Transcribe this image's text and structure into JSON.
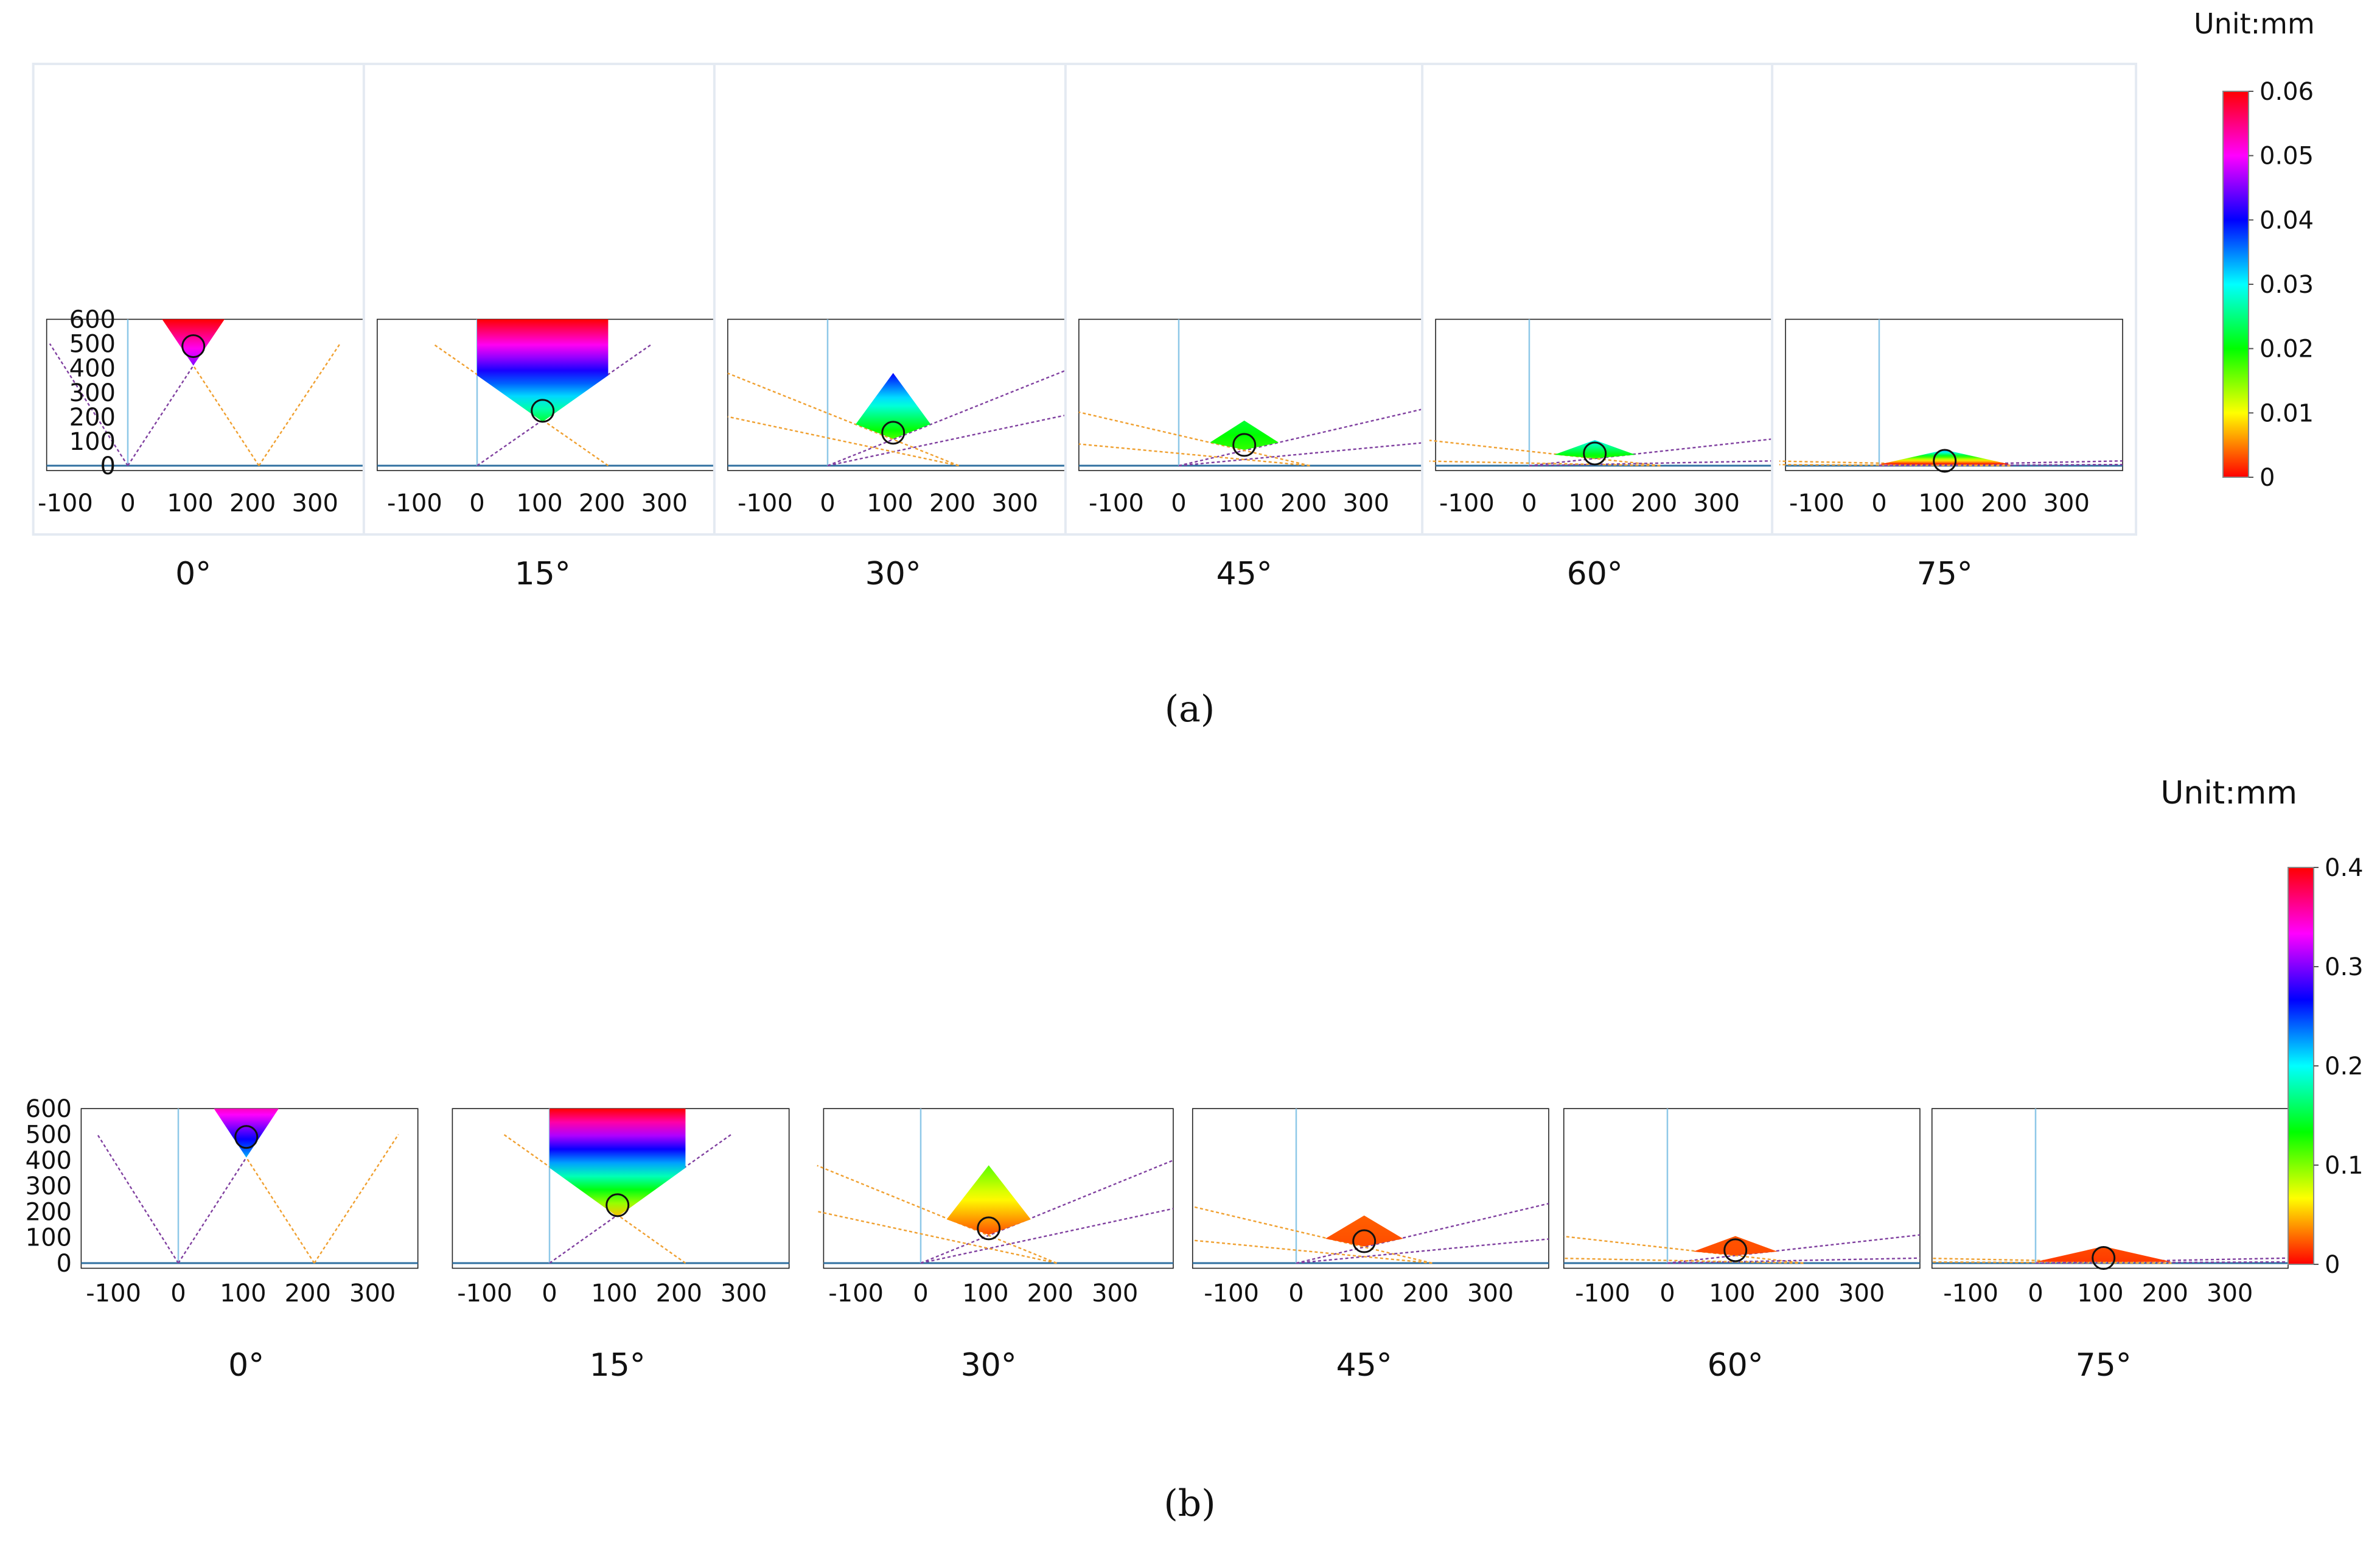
{
  "figure": {
    "unit_label": "Unit:mm",
    "panel_captions": {
      "a": "(a)",
      "b": "(b)"
    }
  },
  "chart_data": [
    {
      "type": "heatmap",
      "panel": "a",
      "unit": "Unit:mm",
      "subplot_titles": [
        "0°",
        "15°",
        "30°",
        "45°",
        "60°",
        "75°"
      ],
      "tilt_angles_deg": [
        0,
        15,
        30,
        45,
        60,
        75
      ],
      "x_ticks": [
        "-100",
        "0",
        "100",
        "200",
        "300"
      ],
      "x_tick_values": [
        -100,
        0,
        100,
        200,
        300
      ],
      "y_ticks": [
        "0",
        "100",
        "200",
        "300",
        "400",
        "500",
        "600"
      ],
      "y_tick_values": [
        0,
        100,
        200,
        300,
        400,
        500,
        600
      ],
      "xlim": [
        -130,
        380
      ],
      "ylim": [
        -20,
        600
      ],
      "colorbar": {
        "ticks": [
          "0",
          "0.01",
          "0.02",
          "0.03",
          "0.04",
          "0.05",
          "0.06"
        ],
        "tick_values": [
          0,
          0.01,
          0.02,
          0.03,
          0.04,
          0.05,
          0.06
        ],
        "range": [
          0,
          0.06
        ],
        "colors": [
          "#ff0000",
          "#ffff00",
          "#00ff00",
          "#00ffff",
          "#0000ff",
          "#ff00ff",
          "#ff0000"
        ]
      },
      "marker_circles": [
        {
          "x": 105,
          "y": 490
        },
        {
          "x": 105,
          "y": 225
        },
        {
          "x": 105,
          "y": 135
        },
        {
          "x": 105,
          "y": 85
        },
        {
          "x": 105,
          "y": 50
        },
        {
          "x": 105,
          "y": 20
        }
      ]
    },
    {
      "type": "heatmap",
      "panel": "b",
      "unit": "Unit:mm",
      "subplot_titles": [
        "0°",
        "15°",
        "30°",
        "45°",
        "60°",
        "75°"
      ],
      "tilt_angles_deg": [
        0,
        15,
        30,
        45,
        60,
        75
      ],
      "x_ticks": [
        "-100",
        "0",
        "100",
        "200",
        "300"
      ],
      "x_tick_values": [
        -100,
        0,
        100,
        200,
        300
      ],
      "y_ticks": [
        "0",
        "100",
        "200",
        "300",
        "400",
        "500",
        "600"
      ],
      "y_tick_values": [
        0,
        100,
        200,
        300,
        400,
        500,
        600
      ],
      "xlim": [
        -150,
        380
      ],
      "ylim": [
        -20,
        600
      ],
      "colorbar": {
        "ticks": [
          "0",
          "0.1",
          "0.2",
          "0.3",
          "0.4"
        ],
        "tick_values": [
          0,
          0.1,
          0.2,
          0.3,
          0.4
        ],
        "range": [
          0,
          0.4
        ],
        "colors": [
          "#ff0000",
          "#ffff00",
          "#00ff00",
          "#00ffff",
          "#0000ff",
          "#ff00ff",
          "#ff0000"
        ]
      },
      "marker_circles": [
        {
          "x": 105,
          "y": 490
        },
        {
          "x": 105,
          "y": 225
        },
        {
          "x": 105,
          "y": 135
        },
        {
          "x": 105,
          "y": 85
        },
        {
          "x": 105,
          "y": 50
        },
        {
          "x": 105,
          "y": 20
        }
      ]
    }
  ]
}
